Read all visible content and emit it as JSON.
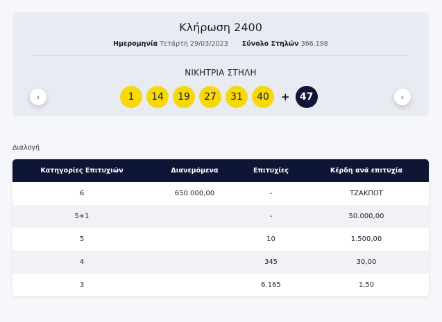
{
  "draw": {
    "title": "Κλήρωση 2400",
    "date_label": "Ημερομηνία",
    "date_value": "Τετάρτη 29/03/2023",
    "columns_label": "Σύνολο Στηλών",
    "columns_value": "366.198",
    "winning_title": "ΝΙΚΗΤΡΙΑ ΣΤΗΛΗ",
    "numbers": [
      "1",
      "14",
      "19",
      "27",
      "31",
      "40"
    ],
    "plus": "+",
    "joker": "47",
    "prev_icon": "‹",
    "next_icon": "›"
  },
  "section_label": "Διαλογή",
  "table": {
    "headers": [
      "Κατηγορίες Επιτυχιών",
      "Διανεμόμενα",
      "Επιτυχίες",
      "Κέρδη ανά επιτυχία"
    ],
    "rows": [
      [
        "6",
        "650.000,00",
        "-",
        "ΤΖΑΚΠΟΤ"
      ],
      [
        "5+1",
        "",
        "-",
        "50.000,00"
      ],
      [
        "5",
        "",
        "10",
        "1.500,00"
      ],
      [
        "4",
        "",
        "345",
        "30,00"
      ],
      [
        "3",
        "",
        "6.165",
        "1,50"
      ]
    ]
  },
  "colors": {
    "ball_yellow": "#f7d90b",
    "joker_navy": "#0f1535",
    "header_navy": "#0f1535"
  },
  "icons": {
    "prev": "chevron-left-icon",
    "next": "chevron-right-icon"
  }
}
